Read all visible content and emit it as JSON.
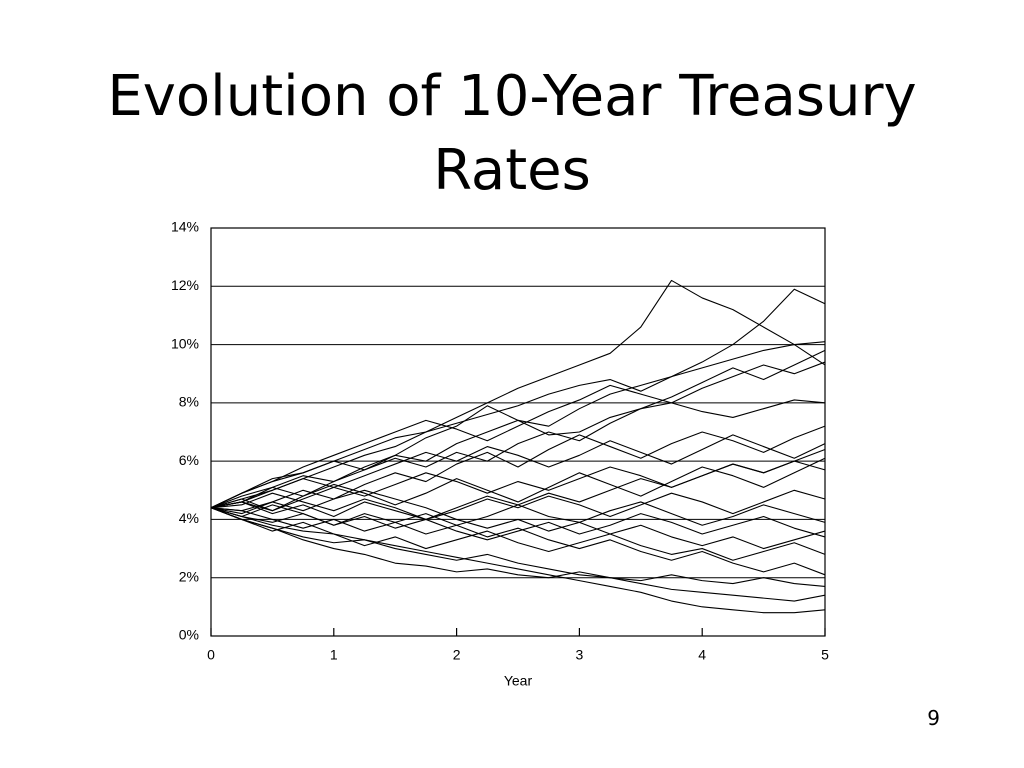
{
  "chart_data": {
    "type": "line",
    "title": "Evolution of 10-Year Treasury Rates",
    "xlabel": "Year",
    "color": "#000000",
    "x": [
      0,
      0.25,
      0.5,
      0.75,
      1,
      1.25,
      1.5,
      1.75,
      2,
      2.25,
      2.5,
      2.75,
      3,
      3.25,
      3.5,
      3.75,
      4,
      4.25,
      4.5,
      4.75,
      5
    ],
    "xlim": [
      0,
      5
    ],
    "xticks": [
      0,
      1,
      2,
      3,
      4,
      5
    ],
    "ylim": [
      0,
      14
    ],
    "yticks": [
      {
        "value": 0,
        "label": "0%"
      },
      {
        "value": 2,
        "label": "2%"
      },
      {
        "value": 4,
        "label": "4%"
      },
      {
        "value": 6,
        "label": "6%"
      },
      {
        "value": 8,
        "label": "8%"
      },
      {
        "value": 10,
        "label": "10%"
      },
      {
        "value": 12,
        "label": "12%"
      },
      {
        "value": 14,
        "label": "14%"
      }
    ],
    "grid": true,
    "series": [
      {
        "values": [
          4.4,
          4.7,
          5.0,
          5.4,
          5.8,
          6.2,
          6.5,
          7.0,
          7.5,
          8.0,
          8.5,
          8.9,
          9.3,
          9.7,
          10.6,
          12.2,
          11.6,
          11.2,
          10.6,
          10.0,
          9.3
        ]
      },
      {
        "values": [
          4.4,
          4.6,
          5.1,
          5.5,
          5.3,
          5.8,
          6.2,
          6.0,
          6.6,
          7.0,
          7.4,
          7.2,
          7.8,
          8.3,
          8.6,
          8.9,
          9.4,
          10.0,
          10.8,
          11.9,
          11.4
        ]
      },
      {
        "values": [
          4.4,
          4.9,
          5.3,
          5.6,
          6.0,
          6.4,
          6.8,
          7.0,
          7.3,
          7.6,
          7.9,
          8.3,
          8.6,
          8.8,
          8.4,
          8.9,
          9.2,
          9.5,
          9.8,
          10.0,
          10.1
        ]
      },
      {
        "values": [
          4.4,
          4.1,
          3.8,
          3.6,
          3.5,
          3.3,
          3.1,
          2.9,
          2.7,
          2.5,
          2.3,
          2.1,
          1.9,
          1.7,
          1.5,
          1.2,
          1.0,
          0.9,
          0.8,
          0.8,
          0.9
        ]
      },
      {
        "values": [
          4.4,
          4.0,
          3.7,
          3.4,
          3.2,
          3.3,
          3.0,
          2.8,
          2.6,
          2.8,
          2.5,
          2.3,
          2.1,
          2.0,
          1.8,
          1.6,
          1.5,
          1.4,
          1.3,
          1.2,
          1.4
        ]
      },
      {
        "values": [
          4.4,
          4.6,
          4.2,
          4.5,
          4.1,
          4.6,
          4.3,
          4.0,
          4.4,
          4.8,
          4.5,
          4.1,
          3.9,
          4.3,
          4.6,
          4.2,
          3.8,
          4.1,
          4.5,
          4.2,
          3.9
        ]
      },
      {
        "values": [
          4.4,
          4.9,
          5.4,
          5.6,
          6.0,
          5.7,
          6.2,
          6.8,
          7.2,
          7.9,
          7.4,
          6.9,
          7.0,
          7.5,
          7.8,
          8.0,
          7.7,
          7.5,
          7.8,
          8.1,
          8.0
        ]
      },
      {
        "values": [
          4.4,
          4.2,
          4.6,
          5.0,
          4.7,
          5.2,
          5.6,
          5.3,
          5.9,
          6.3,
          5.8,
          6.4,
          6.9,
          6.5,
          6.1,
          6.6,
          7.0,
          6.7,
          6.3,
          6.8,
          7.2
        ]
      },
      {
        "values": [
          4.4,
          4.0,
          3.6,
          3.9,
          3.5,
          3.1,
          3.4,
          3.0,
          3.3,
          3.6,
          3.2,
          2.9,
          3.2,
          3.5,
          3.1,
          2.8,
          3.0,
          2.6,
          2.9,
          3.2,
          2.8
        ]
      },
      {
        "values": [
          4.4,
          4.7,
          4.3,
          4.8,
          5.2,
          4.9,
          4.5,
          4.9,
          5.4,
          5.0,
          4.6,
          5.1,
          5.6,
          5.2,
          4.8,
          5.3,
          5.8,
          5.5,
          5.1,
          5.6,
          6.1
        ]
      },
      {
        "values": [
          4.4,
          4.1,
          4.5,
          4.2,
          3.8,
          4.2,
          3.9,
          3.5,
          3.8,
          3.4,
          3.7,
          3.3,
          3.0,
          3.3,
          2.9,
          2.6,
          2.9,
          2.5,
          2.2,
          2.5,
          2.1
        ]
      },
      {
        "values": [
          4.4,
          4.8,
          5.1,
          4.8,
          5.3,
          5.7,
          6.1,
          5.8,
          6.3,
          6.0,
          6.6,
          7.0,
          6.7,
          7.3,
          7.8,
          8.2,
          8.7,
          9.2,
          8.8,
          9.3,
          9.8
        ]
      },
      {
        "values": [
          4.4,
          4.3,
          4.0,
          3.7,
          4.0,
          3.6,
          3.9,
          4.2,
          3.8,
          4.1,
          4.5,
          4.9,
          4.6,
          5.0,
          5.4,
          5.1,
          5.5,
          5.9,
          5.6,
          6.0,
          5.7
        ]
      },
      {
        "values": [
          4.4,
          4.5,
          4.9,
          4.6,
          4.3,
          4.7,
          4.4,
          4.0,
          4.3,
          4.7,
          4.4,
          4.8,
          4.5,
          4.1,
          4.5,
          4.9,
          4.6,
          4.2,
          4.6,
          5.0,
          4.7
        ]
      },
      {
        "values": [
          4.4,
          4.0,
          3.7,
          3.3,
          3.0,
          2.8,
          2.5,
          2.4,
          2.2,
          2.3,
          2.1,
          2.0,
          2.2,
          2.0,
          1.9,
          2.1,
          1.9,
          1.8,
          2.0,
          1.8,
          1.7
        ]
      },
      {
        "values": [
          4.4,
          4.6,
          5.0,
          5.4,
          5.1,
          5.5,
          5.9,
          6.3,
          6.0,
          6.5,
          6.2,
          5.8,
          6.2,
          6.7,
          6.3,
          5.9,
          6.4,
          6.9,
          6.5,
          6.1,
          6.6
        ]
      },
      {
        "values": [
          4.4,
          4.3,
          4.6,
          4.3,
          4.7,
          5.0,
          4.7,
          4.4,
          4.0,
          3.7,
          4.0,
          3.6,
          3.9,
          3.5,
          3.8,
          3.4,
          3.1,
          3.4,
          3.0,
          3.3,
          3.6
        ]
      },
      {
        "values": [
          4.4,
          4.9,
          5.3,
          5.8,
          6.2,
          6.6,
          7.0,
          7.4,
          7.1,
          6.7,
          7.2,
          7.7,
          8.1,
          8.6,
          8.3,
          8.0,
          8.5,
          8.9,
          9.3,
          9.0,
          9.4
        ]
      },
      {
        "values": [
          4.4,
          4.1,
          3.9,
          4.2,
          3.8,
          4.1,
          3.7,
          4.0,
          3.6,
          3.3,
          3.6,
          3.9,
          3.5,
          3.8,
          4.2,
          3.9,
          3.5,
          3.8,
          4.1,
          3.7,
          3.4
        ]
      },
      {
        "values": [
          4.4,
          4.6,
          4.3,
          4.7,
          5.1,
          4.8,
          5.2,
          5.6,
          5.3,
          4.9,
          5.3,
          5.0,
          5.4,
          5.8,
          5.5,
          5.1,
          5.5,
          5.9,
          5.6,
          6.0,
          6.4
        ]
      }
    ]
  },
  "page_number": "9"
}
